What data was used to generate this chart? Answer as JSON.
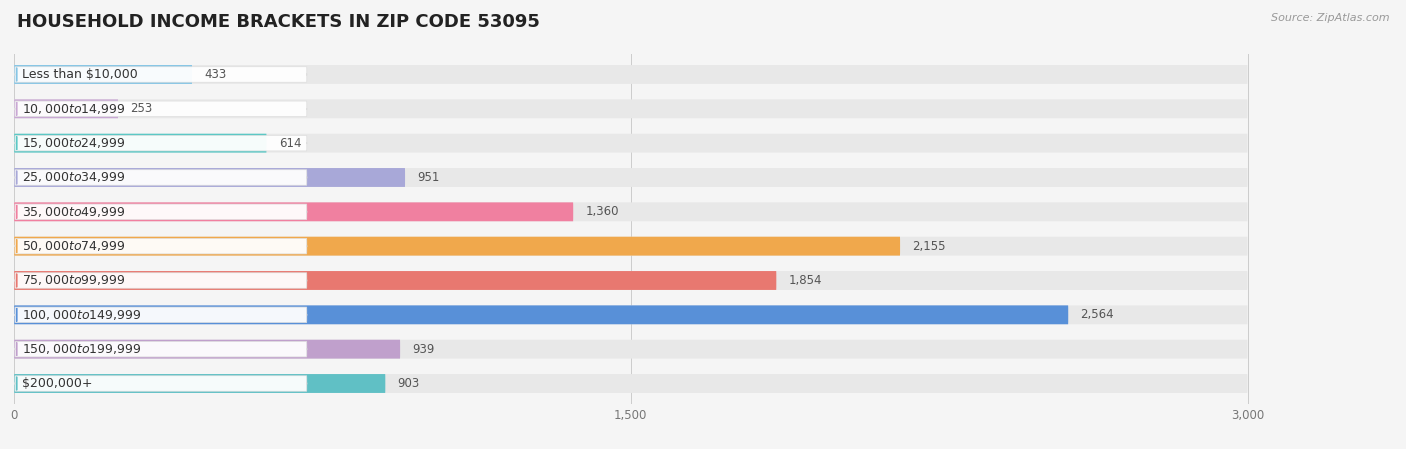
{
  "title": "HOUSEHOLD INCOME BRACKETS IN ZIP CODE 53095",
  "source": "Source: ZipAtlas.com",
  "categories": [
    "Less than $10,000",
    "$10,000 to $14,999",
    "$15,000 to $24,999",
    "$25,000 to $34,999",
    "$35,000 to $49,999",
    "$50,000 to $74,999",
    "$75,000 to $99,999",
    "$100,000 to $149,999",
    "$150,000 to $199,999",
    "$200,000+"
  ],
  "values": [
    433,
    253,
    614,
    951,
    1360,
    2155,
    1854,
    2564,
    939,
    903
  ],
  "bar_colors": [
    "#85c5e5",
    "#c9a8d4",
    "#5cc8c5",
    "#a8a8d8",
    "#f080a0",
    "#f0a84c",
    "#e87870",
    "#5890d8",
    "#c0a0cc",
    "#60c0c5"
  ],
  "xlim_max": 3000,
  "xticks": [
    0,
    1500,
    3000
  ],
  "xtick_labels": [
    "0",
    "1,500",
    "3,000"
  ],
  "bg_color": "#f5f5f5",
  "row_bg_color": "#e8e8e8",
  "title_fontsize": 13,
  "label_fontsize": 9,
  "value_fontsize": 8.5
}
